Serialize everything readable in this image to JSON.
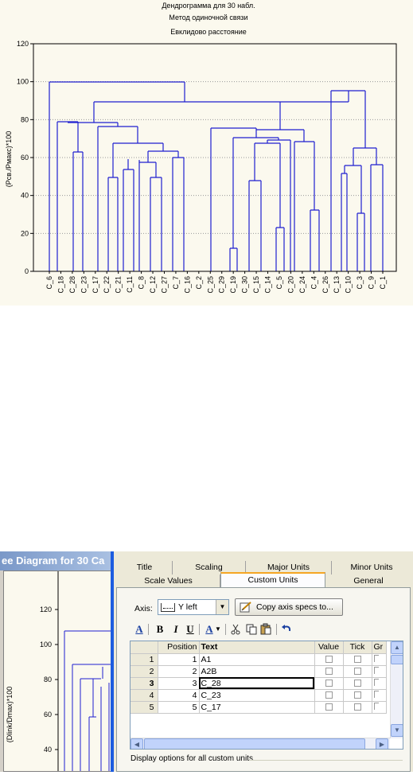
{
  "top_chart": {
    "titles": [
      "Дендрограмма для 30 набл.",
      "Метод одиночной связи",
      "Евклидово расстояние"
    ],
    "ylabel": "(Рсв./Рмакс)*100"
  },
  "chart_data": [
    {
      "type": "dendrogram",
      "title": "Дендрограмма для 30 набл.",
      "subtitles": [
        "Метод одиночной связи",
        "Евклидово расстояние"
      ],
      "xlabel": "",
      "ylabel": "(Рсв./Рмакс)*100",
      "ylim": [
        0,
        120
      ],
      "yticks": [
        0,
        20,
        40,
        60,
        80,
        100,
        120
      ],
      "grid": "horizontal dotted",
      "leaves": [
        "C_6",
        "C_18",
        "C_28",
        "C_23",
        "C_17",
        "C_22",
        "C_21",
        "C_11",
        "C_8",
        "C_12",
        "C_27",
        "C_7",
        "C_16",
        "C_2",
        "C_25",
        "C_29",
        "C_19",
        "C_30",
        "C_15",
        "C_14",
        "C_5",
        "C_20",
        "C_24",
        "C_4",
        "C_26",
        "C_13",
        "C_10",
        "C_3",
        "C_9",
        "C_1"
      ],
      "merges": [
        {
          "a": "C_29",
          "b": "C_19",
          "height": 12
        },
        {
          "a": "C_14",
          "b": "C_5",
          "height": 23
        },
        {
          "a": "C_3",
          "b": "C_9",
          "height": 31
        },
        {
          "a": "C_4",
          "b": "C_26",
          "height": 32
        },
        {
          "a": "C_30",
          "b": "C_15",
          "height": 48
        },
        {
          "a": "C_8",
          "b": "C_12",
          "height": 49
        },
        {
          "a": "C_21",
          "b": "C_11",
          "height": 50
        },
        {
          "a": "C_13",
          "b": "C_10",
          "height": 52
        },
        {
          "a": "C_7",
          "b": "C_16",
          "height": 57
        },
        {
          "a": "C_20",
          "b": "C_24",
          "height": 63
        },
        {
          "a": "C_28",
          "b": "C_23",
          "height": 63
        },
        {
          "a": "C_22",
          "b": "C_21",
          "height": 68
        },
        {
          "a": "C_6",
          "b": "C_18",
          "height": 100
        }
      ]
    }
  ],
  "graph_window": {
    "title": "ee Diagram for 30 Ca",
    "yticks": [
      "120",
      "100",
      "80",
      "60",
      "40"
    ],
    "ylabel": "(Dlink/Dmax)*100"
  },
  "dialog": {
    "tabs_row1": [
      "Title",
      "Scaling",
      "Major Units",
      "Minor Units"
    ],
    "tabs_row2": [
      "Scale Values",
      "Custom Units",
      "General"
    ],
    "active_tab": "Custom Units",
    "axis_label": "Axis:",
    "axis_value": "Y left",
    "copy_button": "Copy axis specs to...",
    "format_buttons": [
      "A",
      "B",
      "I",
      "U",
      "A"
    ],
    "grid": {
      "columns": [
        "Position",
        "Text",
        "Value",
        "Tick",
        "Gr"
      ],
      "rows": [
        {
          "n": "1",
          "position": "1",
          "text": "A1"
        },
        {
          "n": "2",
          "position": "2",
          "text": "A2B"
        },
        {
          "n": "3",
          "position": "3",
          "text": "C_28"
        },
        {
          "n": "4",
          "position": "4",
          "text": "C_23"
        },
        {
          "n": "5",
          "position": "5",
          "text": "C_17"
        }
      ]
    },
    "display_options_label": "Display options for all custom units"
  },
  "colors": {
    "dendrogram_lines": "#1f1fd0",
    "chart_background": "#fbf9ee",
    "dialog_background": "#ece9d8",
    "titlebar": "#7a98c8",
    "separator": "#1c5ce0"
  }
}
